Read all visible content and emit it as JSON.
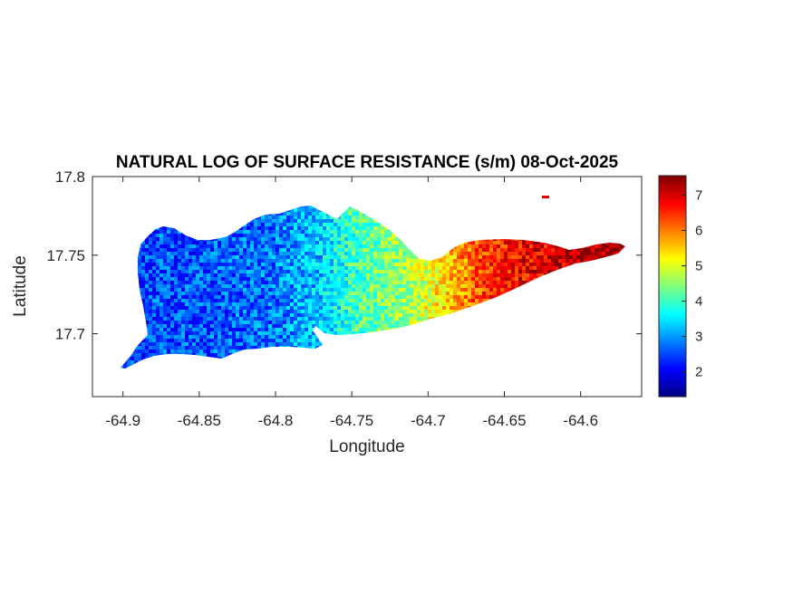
{
  "chart_data": {
    "type": "heatmap",
    "title": "NATURAL LOG OF SURFACE RESISTANCE (s/m) 08-Oct-2025",
    "xlabel": "Longitude",
    "ylabel": "Latitude",
    "xlim": [
      -64.92,
      -64.56
    ],
    "ylim": [
      17.66,
      17.8
    ],
    "xticks": [
      -64.9,
      -64.85,
      -64.8,
      -64.75,
      -64.7,
      -64.65,
      -64.6
    ],
    "xtick_labels": [
      "-64.9",
      "-64.85",
      "-64.8",
      "-64.75",
      "-64.7",
      "-64.65",
      "-64.6"
    ],
    "yticks": [
      17.7,
      17.75,
      17.8
    ],
    "ytick_labels": [
      "17.7",
      "17.75",
      "17.8"
    ],
    "colormap": "jet",
    "colorbar": {
      "range": [
        1.3,
        7.55
      ],
      "ticks": [
        2,
        3,
        4,
        5,
        6,
        7
      ],
      "tick_labels": [
        "2",
        "3",
        "4",
        "5",
        "6",
        "7"
      ]
    },
    "grid": false,
    "gradient_along_longitude": [
      {
        "lon": -64.9,
        "value": 2.5
      },
      {
        "lon": -64.85,
        "value": 2.6
      },
      {
        "lon": -64.8,
        "value": 2.8
      },
      {
        "lon": -64.77,
        "value": 3.3
      },
      {
        "lon": -64.75,
        "value": 4.0
      },
      {
        "lon": -64.72,
        "value": 4.5
      },
      {
        "lon": -64.7,
        "value": 5.0
      },
      {
        "lon": -64.68,
        "value": 5.8
      },
      {
        "lon": -64.66,
        "value": 6.5
      },
      {
        "lon": -64.62,
        "value": 7.0
      },
      {
        "lon": -64.6,
        "value": 7.3
      },
      {
        "lon": -64.57,
        "value": 7.4
      }
    ],
    "islet": {
      "lon": -64.623,
      "lat": 17.787,
      "value": 7.0
    }
  }
}
